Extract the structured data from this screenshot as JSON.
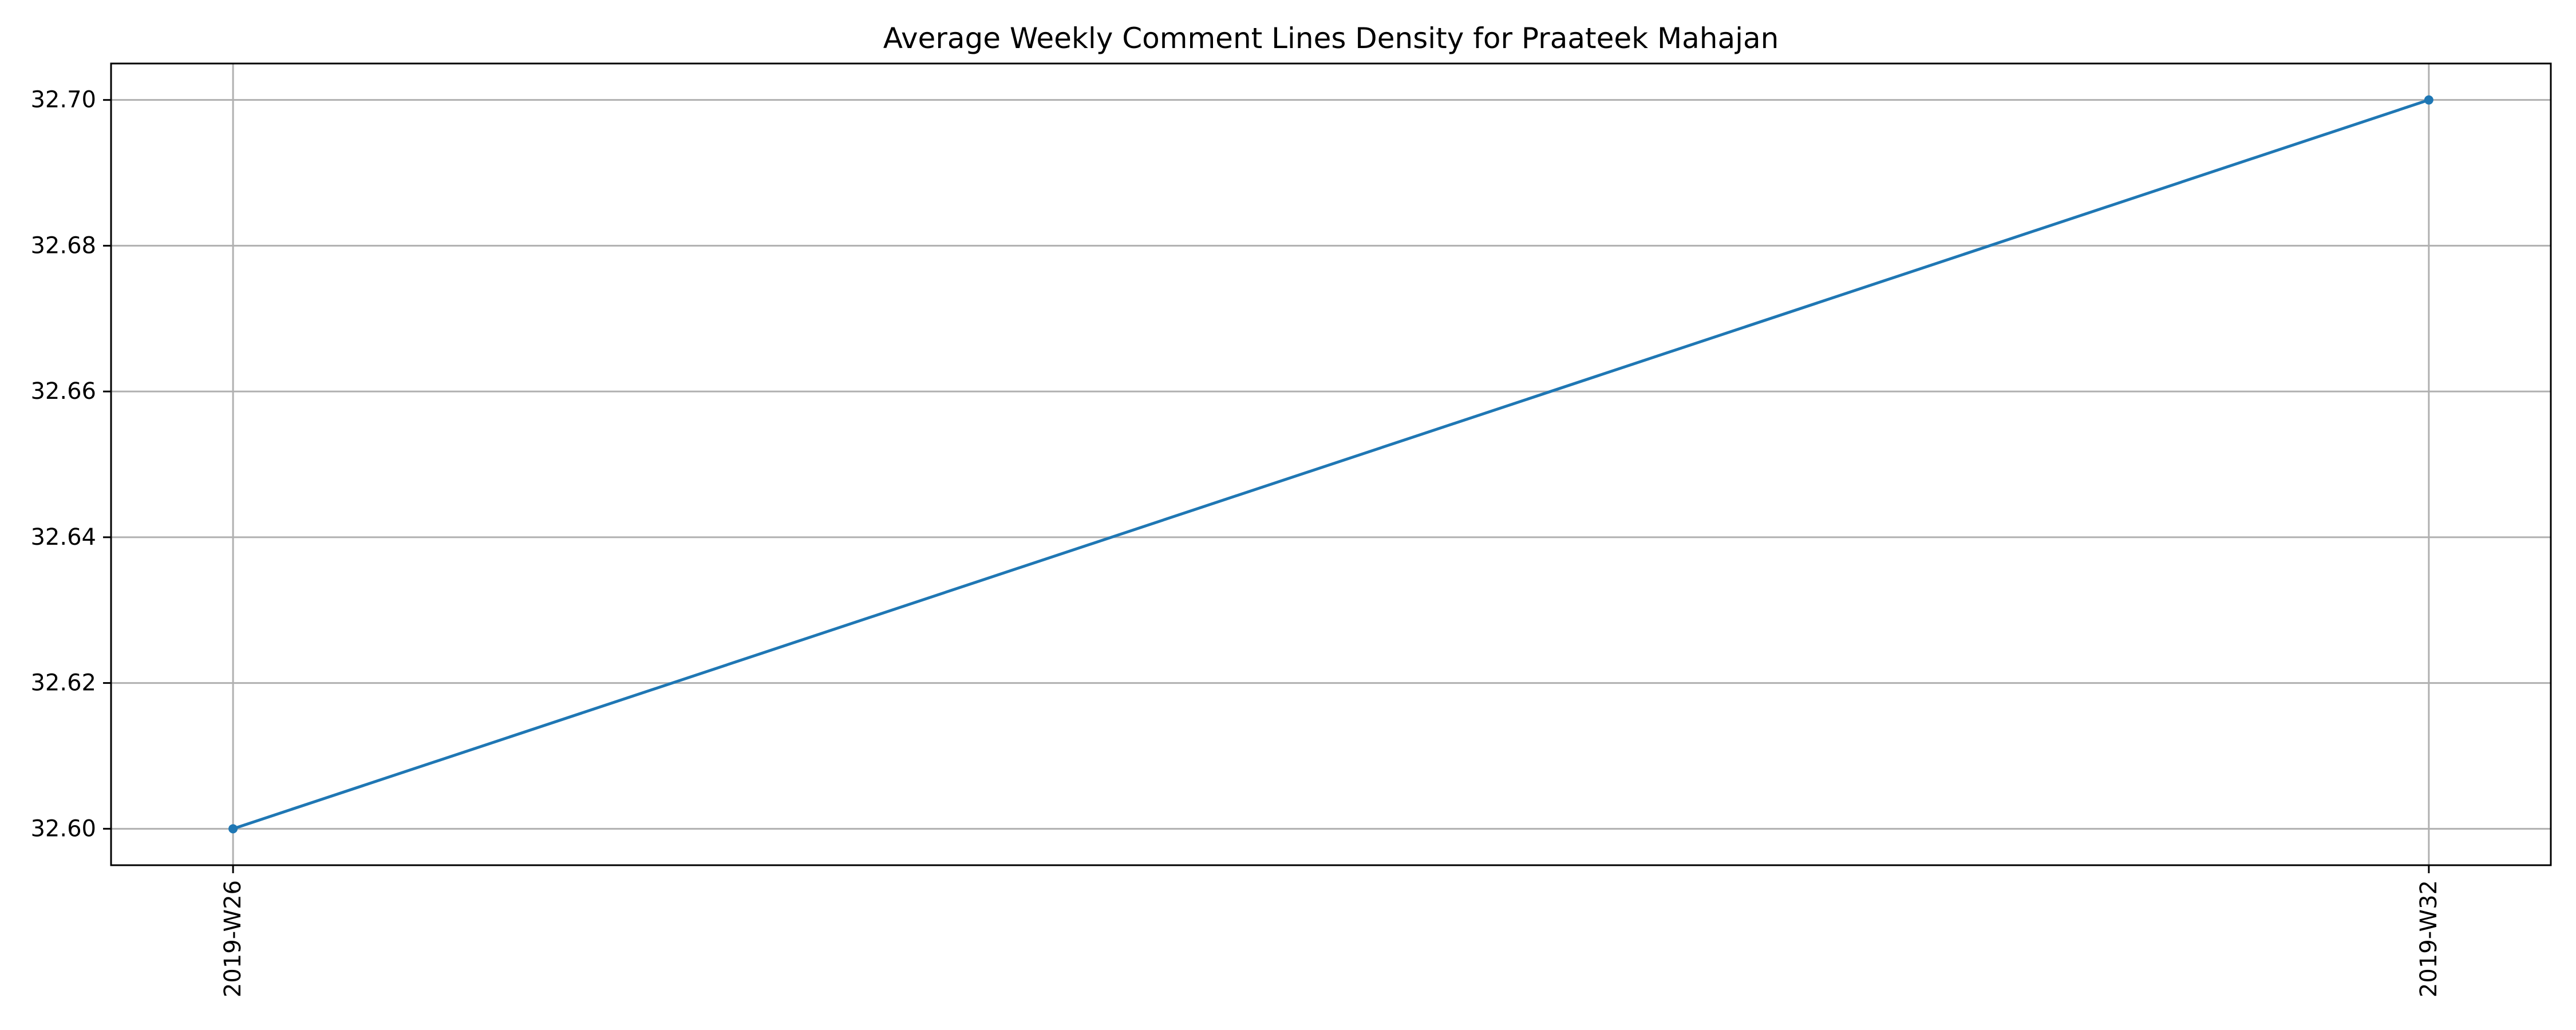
{
  "chart_data": {
    "type": "line",
    "title": "Average Weekly Comment Lines Density for Praateek Mahajan",
    "xlabel": "",
    "ylabel": "",
    "categories": [
      "2019-W26",
      "2019-W32"
    ],
    "series": [
      {
        "values": [
          32.6,
          32.7
        ],
        "color": "#1f77b4",
        "marker": "circle"
      }
    ],
    "ylim": [
      32.595,
      32.705
    ],
    "yticks": [
      32.6,
      32.62,
      32.64,
      32.66,
      32.68,
      32.7
    ],
    "ytick_labels": [
      "32.60",
      "32.62",
      "32.64",
      "32.66",
      "32.68",
      "32.70"
    ],
    "xtick_rotation": "vertical",
    "grid": true,
    "grid_color": "#b0b0b0",
    "legend": "none"
  }
}
